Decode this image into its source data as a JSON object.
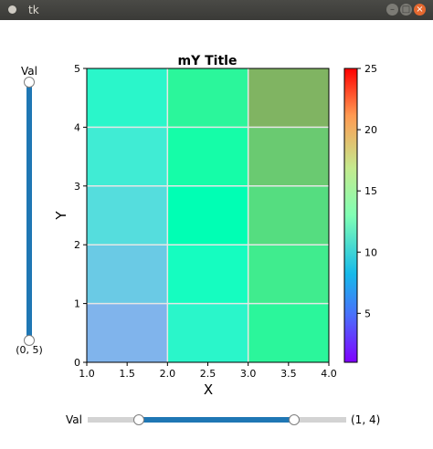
{
  "window": {
    "title": "tk",
    "buttons": {
      "minimize": "–",
      "maximize": "□",
      "close": "×"
    }
  },
  "vertical_slider": {
    "label": "Val",
    "value_text": "(0, 5)",
    "range": [
      0,
      5
    ]
  },
  "horizontal_slider": {
    "label": "Val",
    "value_text": "(1, 4)",
    "range": [
      1,
      4
    ]
  },
  "chart_data": {
    "type": "heatmap",
    "title": "mY Title",
    "xlabel": "X",
    "ylabel": "Y",
    "xlim": [
      1.0,
      4.0
    ],
    "ylim": [
      0,
      5
    ],
    "x_ticks": [
      "1.0",
      "1.5",
      "2.0",
      "2.5",
      "3.0",
      "3.5",
      "4.0"
    ],
    "y_ticks": [
      "0",
      "1",
      "2",
      "3",
      "4",
      "5"
    ],
    "x_edges": [
      1,
      2,
      3,
      4
    ],
    "y_edges": [
      0,
      1,
      2,
      3,
      4,
      5
    ],
    "values": [
      [
        7,
        11,
        15
      ],
      [
        8,
        12,
        16
      ],
      [
        9,
        13,
        17
      ],
      [
        10,
        14,
        18
      ],
      [
        11,
        15,
        19
      ]
    ],
    "colorbar": {
      "cmap": "rainbow",
      "vmin": 1,
      "vmax": 25,
      "ticks": [
        "5",
        "10",
        "15",
        "20",
        "25"
      ]
    },
    "grid": true
  }
}
